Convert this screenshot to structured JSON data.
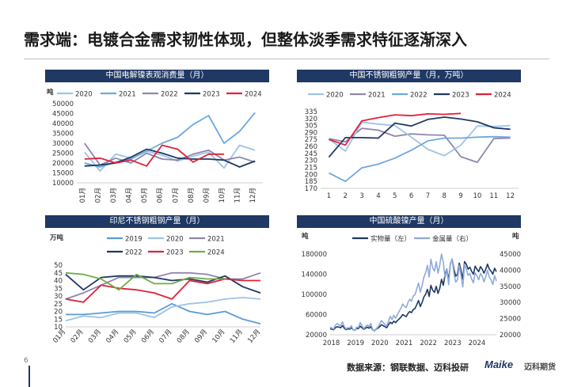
{
  "slide": {
    "title": "需求端：电镀合金需求韧性体现，但整体淡季需求特征逐渐深入",
    "page_number": "6",
    "source": "数据来源：钢联数据、迈科投研",
    "logo_main": "Maike",
    "logo_sub": "迈科期货"
  },
  "colors": {
    "header_bg": "#1f3864",
    "c2019": "#5b9bd5",
    "c2020": "#9dc3e6",
    "c2021": "#6fa8dc",
    "c2022": "#8e86ae",
    "c2022_chart3": "#1f3864",
    "c2023": "#1f3864",
    "c2023_chart3": "#e0213a",
    "c2024": "#e0213a",
    "c2024_chart3": "#70ad47",
    "physical": "#1f3864",
    "metal": "#8eaadb"
  },
  "chart_data": [
    {
      "type": "line",
      "title": "中国电解镍表观消费量（月）",
      "ylabel": "吨",
      "categories": [
        "01月",
        "02月",
        "03月",
        "04月",
        "05月",
        "06月",
        "07月",
        "08月",
        "09月",
        "10月",
        "11月",
        "12月"
      ],
      "ylim": [
        10000,
        50000
      ],
      "yticks": [
        10000,
        15000,
        20000,
        25000,
        30000,
        35000,
        40000,
        45000,
        50000
      ],
      "series": [
        {
          "name": "2020",
          "values": [
            25500,
            16000,
            24500,
            22500,
            26000,
            24000,
            21000,
            23500,
            25500,
            17500,
            29000,
            26500
          ]
        },
        {
          "name": "2021",
          "values": [
            20000,
            18000,
            20500,
            22000,
            26000,
            30000,
            33000,
            39500,
            44000,
            30000,
            36000,
            45500
          ]
        },
        {
          "name": "2022",
          "values": [
            30000,
            19000,
            22500,
            20000,
            25000,
            22000,
            21500,
            24500,
            26500,
            21500,
            23000,
            20500
          ]
        },
        {
          "name": "2023",
          "values": [
            18500,
            19000,
            20000,
            23000,
            27000,
            25000,
            22500,
            22000,
            22000,
            21500,
            18000,
            21000
          ]
        },
        {
          "name": "2024",
          "values": [
            22000,
            22500,
            20000,
            21500,
            18500,
            29000,
            27000,
            20500,
            24500,
            24500,
            null,
            null
          ]
        }
      ]
    },
    {
      "type": "line",
      "title": "中国不锈钢粗钢产量（月，万吨）",
      "categories": [
        "1",
        "2",
        "3",
        "4",
        "5",
        "6",
        "7",
        "8",
        "9",
        "10",
        "11",
        "12"
      ],
      "ylim": [
        170,
        340
      ],
      "yticks": [
        170,
        185,
        200,
        215,
        230,
        245,
        260,
        275,
        290,
        305,
        320,
        335
      ],
      "series": [
        {
          "name": "2020",
          "values": [
            null,
            null,
            null,
            null,
            null,
            null,
            null,
            null,
            null,
            null,
            null,
            null
          ]
        },
        {
          "name": "2021",
          "values": [
            203,
            185,
            214,
            222,
            235,
            252,
            272,
            278,
            278,
            280,
            281,
            280
          ]
        },
        {
          "name": "2022",
          "values": [
            277,
            270,
            299,
            295,
            282,
            287,
            285,
            284,
            238,
            226,
            277,
            278
          ]
        },
        {
          "name": "2023",
          "values": [
            276,
            250,
            312,
            308,
            305,
            280,
            254,
            240,
            263,
            304,
            303,
            305
          ]
        },
        {
          "name": "2024",
          "values": [
            237,
            279,
            279,
            278,
            310,
            304,
            318,
            323,
            319,
            313,
            300,
            297
          ]
        },
        {
          "name": "2024",
          "values": [
            275,
            263,
            315,
            322,
            328,
            326,
            330,
            329,
            331,
            null,
            null,
            null
          ]
        }
      ]
    },
    {
      "type": "line",
      "title": "印尼不锈钢粗钢产量（月）",
      "ylabel": "万吨",
      "categories": [
        "01月",
        "02月",
        "03月",
        "04月",
        "05月",
        "06月",
        "07月",
        "08月",
        "09月",
        "10月",
        "11月",
        "12月"
      ],
      "ylim": [
        10,
        50
      ],
      "yticks": [
        10,
        15,
        20,
        25,
        30,
        35,
        40,
        45,
        50
      ],
      "series": [
        {
          "name": "2019",
          "values": [
            18,
            18,
            19,
            20,
            20,
            19,
            25,
            20,
            18,
            20,
            15,
            12
          ]
        },
        {
          "name": "2020",
          "values": [
            14,
            17,
            16,
            19,
            19,
            16,
            23,
            25,
            26,
            28,
            29,
            28
          ]
        },
        {
          "name": "2021",
          "values": [
            28,
            32,
            37,
            42,
            42,
            42,
            45,
            45,
            44,
            41,
            41,
            45
          ]
        },
        {
          "name": "2022",
          "values": [
            44,
            34,
            42,
            43,
            43,
            42,
            40,
            41,
            39,
            43,
            36,
            32
          ]
        },
        {
          "name": "2023",
          "values": [
            28,
            26,
            37,
            35,
            34,
            32,
            28,
            40,
            38,
            41,
            40,
            40
          ]
        },
        {
          "name": "2024",
          "values": [
            45,
            44,
            41,
            34,
            44,
            38,
            38,
            42,
            41,
            41,
            null,
            null
          ]
        }
      ]
    },
    {
      "type": "line",
      "title": "中国硫酸镍产量（月）",
      "ylabel_left": "吨",
      "ylabel_right": "吨",
      "x_ticks": [
        "2018",
        "2019",
        "2020",
        "2021",
        "2022",
        "2023",
        "2024"
      ],
      "ylim_left": [
        20000,
        180000
      ],
      "ylim_right": [
        20000,
        45000
      ],
      "yticks_left": [
        20000,
        60000,
        100000,
        140000,
        180000
      ],
      "yticks_right": [
        20000,
        25000,
        30000,
        35000,
        40000,
        45000
      ],
      "series": [
        {
          "name": "实物量（左）",
          "axis": "left",
          "values": [
            32000,
            31000,
            30000,
            34000,
            36000,
            35000,
            34000,
            38000,
            33000,
            30000,
            32000,
            31000,
            34000,
            30000,
            29000,
            33000,
            32000,
            37000,
            34000,
            31000,
            33000,
            35000,
            33000,
            36000,
            30000,
            28000,
            31000,
            33000,
            36000,
            40000,
            38000,
            36000,
            34000,
            40000,
            45000,
            42000,
            47000,
            44000,
            48000,
            51000,
            55000,
            60000,
            58000,
            56000,
            62000,
            66000,
            64000,
            70000,
            72000,
            80000,
            88000,
            76000,
            84000,
            95000,
            100000,
            110000,
            96000,
            118000,
            108000,
            104000,
            116000,
            102000,
            112000,
            130000,
            118000,
            140000,
            150000,
            128000,
            160000,
            170000,
            150000,
            136000,
            140000,
            162000,
            148000,
            130000,
            165000,
            160000,
            150000,
            154000,
            146000,
            140000,
            156000,
            150000,
            145000,
            155000,
            150000,
            142000,
            150000,
            160000,
            150000,
            146000,
            140000,
            152000,
            145000
          ]
        },
        {
          "name": "金属量（右）",
          "axis": "right",
          "values": [
            22500,
            22000,
            21800,
            23000,
            23500,
            23000,
            22800,
            24000,
            22600,
            21800,
            22200,
            22000,
            22800,
            21600,
            21300,
            22400,
            22200,
            23800,
            22800,
            21900,
            22500,
            23100,
            22500,
            23500,
            21700,
            21100,
            21800,
            22400,
            23300,
            24400,
            23800,
            23200,
            22700,
            24200,
            25700,
            24700,
            26000,
            25100,
            26200,
            27200,
            28200,
            29500,
            28900,
            28400,
            30000,
            31000,
            30400,
            32000,
            32400,
            34300,
            36000,
            33200,
            35300,
            37800,
            39200,
            41500,
            37900,
            43400,
            40700,
            39700,
            42600,
            39100,
            41600,
            45000,
            42400,
            37500,
            40200,
            35500,
            42000,
            43500,
            39000,
            36300,
            37000,
            41500,
            38500,
            34800,
            41800,
            40400,
            38400,
            39000,
            37300,
            36100,
            39200,
            38300,
            37000,
            39000,
            38100,
            36400,
            38000,
            40000,
            37800,
            37000,
            35600,
            38300,
            36600
          ]
        }
      ]
    }
  ]
}
